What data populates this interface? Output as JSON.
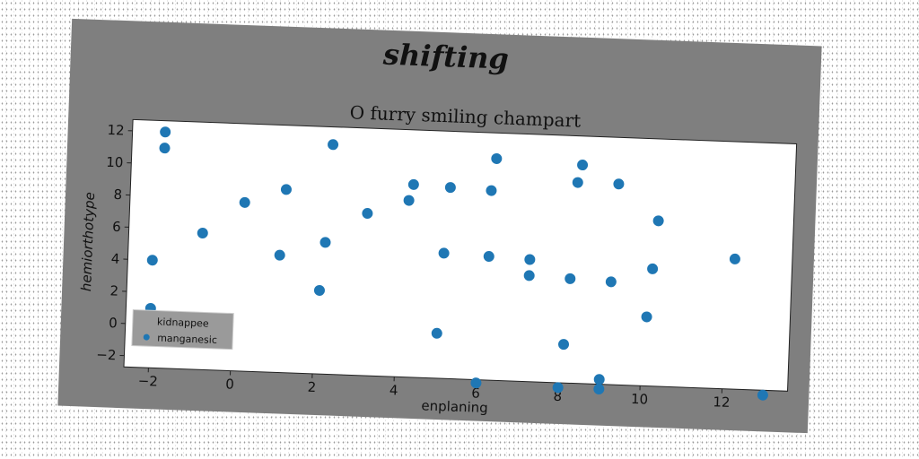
{
  "figure": {
    "suptitle": "shifting"
  },
  "chart_data": {
    "type": "scatter",
    "title": "O furry smiling champart",
    "xlabel": "enplaning",
    "ylabel": "hemiorthotype",
    "xlim": [
      -2.6,
      13.6
    ],
    "ylim": [
      -2.7,
      12.7
    ],
    "xticks": [
      -2,
      0,
      2,
      4,
      6,
      8,
      10,
      12
    ],
    "yticks": [
      -2,
      0,
      2,
      4,
      6,
      8,
      10,
      12
    ],
    "grid": false,
    "legend": {
      "title": "kidnappee",
      "placement": "lower-left"
    },
    "series": [
      {
        "name": "manganesic",
        "color": "#1f77b4",
        "x": [
          -1.8,
          -1.8,
          -2.0,
          -2.0,
          -0.8,
          0.2,
          1.1,
          1.2,
          2.1,
          2.2,
          2.3,
          3.2,
          4.2,
          4.3,
          5.0,
          5.1,
          5.2,
          6.0,
          6.2,
          6.2,
          6.3,
          7.2,
          7.2,
          8.0,
          8.1,
          8.2,
          8.3,
          8.4,
          9.0,
          9.0,
          9.2,
          9.3,
          10.1,
          10.2,
          10.3,
          12.2,
          13.0
        ],
        "y": [
          12.0,
          11.0,
          4.0,
          1.0,
          5.8,
          7.8,
          4.6,
          8.7,
          2.5,
          5.5,
          11.6,
          7.4,
          8.3,
          9.3,
          0.1,
          5.1,
          9.2,
          -2.9,
          5.0,
          9.1,
          11.1,
          3.9,
          4.9,
          -3.0,
          -0.3,
          3.8,
          9.8,
          10.9,
          -2.4,
          -3.0,
          3.7,
          9.8,
          1.6,
          4.6,
          7.6,
          5.4,
          -3.0
        ]
      }
    ]
  }
}
